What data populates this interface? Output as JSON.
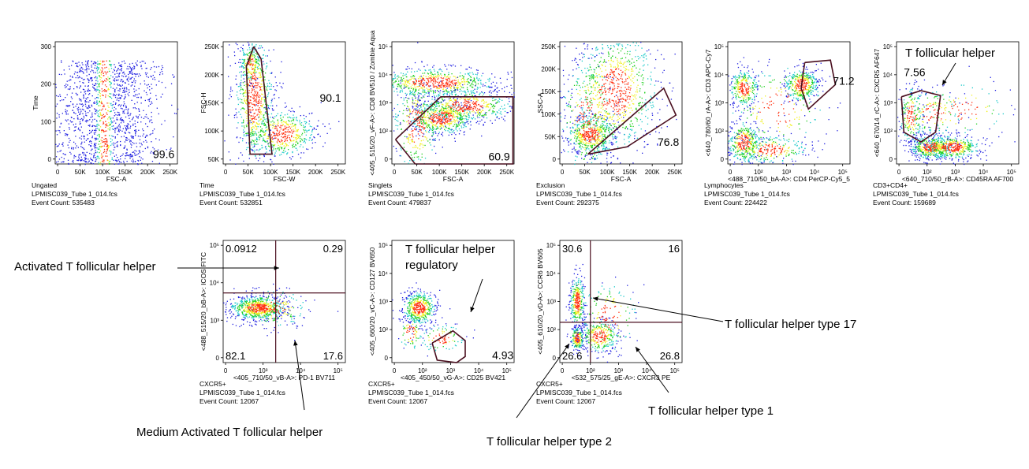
{
  "colors": {
    "density_low": "#1f1fe0",
    "density_mid": "#19c9c9",
    "density_mid2": "#20d020",
    "density_high": "#f0f020",
    "density_peak": "#ff3010",
    "gate": "#4a0f1f"
  },
  "chart_data": [
    {
      "type": "scatter",
      "name": "density plot",
      "xlabel": "FSC-A",
      "ylabel": "Time",
      "x_ticks": [
        "0",
        "50K",
        "100K",
        "150K",
        "200K",
        "250K"
      ],
      "y_ticks": [
        "0",
        "100",
        "200",
        "300"
      ],
      "xlim": [
        0,
        262144
      ],
      "ylim": [
        0,
        330
      ],
      "gate_value": "99.6",
      "footer": [
        "Ungated",
        "LPMISC039_Tube 1_014.fcs",
        "Event Count: 535483"
      ]
    },
    {
      "type": "scatter",
      "name": "density plot",
      "xlabel": "FSC-W",
      "ylabel": "FSC-H",
      "x_ticks": [
        "0",
        "50K",
        "100K",
        "150K",
        "200K",
        "250K"
      ],
      "y_ticks": [
        "50K",
        "100K",
        "150K",
        "200K",
        "250K"
      ],
      "xlim": [
        0,
        262144
      ],
      "ylim": [
        0,
        262144
      ],
      "gate_value": "90.1",
      "footer": [
        "Time",
        "LPMISC039_Tube 1_014.fcs",
        "Event Count: 532851"
      ]
    },
    {
      "type": "scatter",
      "name": "density plot",
      "xlabel": "FSC-A",
      "ylabel": "<405_515/20_vF-A>: CD8 BV510 / Zombie Aqua",
      "x_ticks": [
        "0",
        "50K",
        "100K",
        "150K",
        "200K",
        "250K"
      ],
      "y_ticks": [
        "0",
        "10²",
        "10³",
        "10⁴",
        "10⁵"
      ],
      "xlim": [
        0,
        262144
      ],
      "ylim": "biexponential",
      "gate_value": "60.9",
      "footer": [
        "Singlets",
        "LPMISC039_Tube 1_014.fcs",
        "Event Count: 479837"
      ]
    },
    {
      "type": "scatter",
      "name": "density plot",
      "xlabel": "FSC-A",
      "ylabel": "SSC-A",
      "x_ticks": [
        "0",
        "50K",
        "100K",
        "150K",
        "200K",
        "250K"
      ],
      "y_ticks": [
        "0",
        "50K",
        "100K",
        "150K",
        "200K",
        "250K"
      ],
      "xlim": [
        0,
        262144
      ],
      "ylim": [
        0,
        262144
      ],
      "gate_value": "76.8",
      "footer": [
        "Exclusion",
        "LPMISC039_Tube 1_014.fcs",
        "Event Count: 292375"
      ]
    },
    {
      "type": "scatter",
      "name": "density plot",
      "xlabel": "<488_710/50_bA-A>: CD4 PerCP-Cy5_5",
      "ylabel": "<640_780/60_rA-A>: CD3 APC-Cy7",
      "x_ticks": [
        "0",
        "10²",
        "10³",
        "10⁴",
        "10⁵"
      ],
      "y_ticks": [
        "0",
        "10²",
        "10³",
        "10⁴",
        "10⁵"
      ],
      "xlim": "biexponential",
      "ylim": "biexponential",
      "gate_value": "71.2",
      "footer": [
        "Lymphocytes",
        "LPMISC039_Tube 1_014.fcs",
        "Event Count: 224422"
      ]
    },
    {
      "type": "scatter",
      "name": "density plot",
      "xlabel": "<640_710/50_rB-A>: CD45RA AF700",
      "ylabel": "<640_670/14_rC-A>: CXCR5 AF647",
      "x_ticks": [
        "0",
        "10²",
        "10³",
        "10⁴",
        "10⁵"
      ],
      "y_ticks": [
        "0",
        "10²",
        "10³",
        "10⁴",
        "10⁵"
      ],
      "xlim": "biexponential",
      "ylim": "biexponential",
      "gate_value": "7.56",
      "footer": [
        "CD3+CD4+",
        "LPMISC039_Tube 1_014.fcs",
        "Event Count: 159689"
      ]
    },
    {
      "type": "scatter",
      "name": "density plot",
      "xlabel": "<405_710/50_vB-A>: PD-1 BV711",
      "ylabel": "<488_515/20_bB-A>: ICOS FITC",
      "x_ticks": [
        "0",
        "10³",
        "10⁴",
        "10⁵"
      ],
      "y_ticks": [
        "0",
        "10³",
        "10⁴",
        "10⁵"
      ],
      "xlim": "biexponential",
      "ylim": "biexponential",
      "quadrants": {
        "top_left": "0.0912",
        "top_right": "0.29",
        "bottom_left": "82.1",
        "bottom_right": "17.6"
      },
      "footer": [
        "CXCR5+",
        "LPMISC039_Tube 1_014.fcs",
        "Event Count: 12067"
      ]
    },
    {
      "type": "scatter",
      "name": "density plot",
      "xlabel": "<405_450/50_vG-A>: CD25 BV421",
      "ylabel": "<405_660/20_vC-A>: CD127 BV650",
      "x_ticks": [
        "0",
        "10²",
        "10³",
        "10⁴",
        "10⁵"
      ],
      "y_ticks": [
        "0",
        "10²",
        "10³",
        "10⁴",
        "10⁵"
      ],
      "xlim": "biexponential",
      "ylim": "biexponential",
      "gate_value": "4.93",
      "footer": [
        "CXCR5+",
        "LPMISC039_Tube 1_014.fcs",
        "Event Count: 12067"
      ]
    },
    {
      "type": "scatter",
      "name": "density plot",
      "xlabel": "<532_575/25_gE-A>: CXCR3 PE",
      "ylabel": "<405_610/20_vD-A>: CCR6 BV605",
      "x_ticks": [
        "0",
        "10²",
        "10³",
        "10⁴",
        "10⁵"
      ],
      "y_ticks": [
        "0",
        "10²",
        "10³",
        "10⁴",
        "10⁵"
      ],
      "xlim": "biexponential",
      "ylim": "biexponential",
      "quadrants": {
        "top_left": "30.6",
        "top_right": "16",
        "bottom_left": "26.6",
        "bottom_right": "26.8"
      },
      "footer": [
        "CXCR5+",
        "LPMISC039_Tube 1_014.fcs",
        "Event Count: 12067"
      ]
    }
  ],
  "annotations": {
    "tfh": "T follicular helper",
    "activated_tfh": "Activated T follicular helper",
    "medium_activated_tfh": "Medium Activated T follicular helper",
    "tfr_line1": "T follicular helper",
    "tfr_line2": "regulatory",
    "tfh17": "T follicular helper type 17",
    "tfh1": "T follicular helper type 1",
    "tfh2": "T follicular helper type 2"
  }
}
